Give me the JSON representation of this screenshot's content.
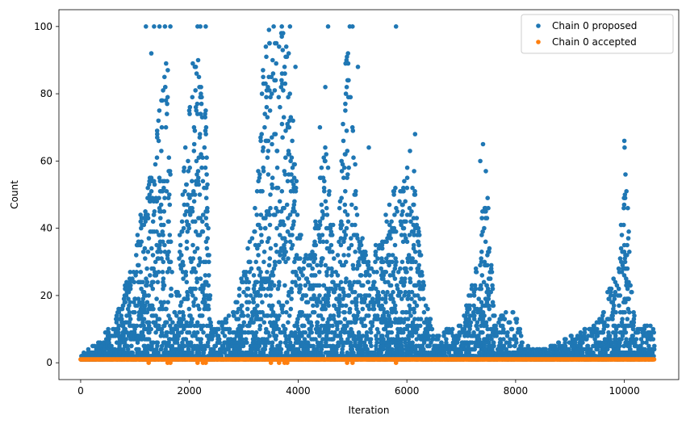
{
  "chart_data": {
    "type": "scatter",
    "title": "",
    "xlabel": "Iteration",
    "ylabel": "Count",
    "xlim": [
      -400,
      11000
    ],
    "ylim": [
      -5,
      105
    ],
    "xticks": [
      0,
      2000,
      4000,
      6000,
      8000,
      10000
    ],
    "xtick_labels": [
      "0",
      "2000",
      "4000",
      "6000",
      "8000",
      "10000"
    ],
    "yticks": [
      0,
      20,
      40,
      60,
      80,
      100
    ],
    "ytick_labels": [
      "0",
      "20",
      "40",
      "60",
      "80",
      "100"
    ],
    "grid": false,
    "legend_position": "upper right",
    "x_range_points": [
      0,
      10550
    ],
    "series": [
      {
        "name": "Chain 0 proposed",
        "color": "#1f77b4",
        "envelope": [
          [
            0,
            2
          ],
          [
            300,
            6
          ],
          [
            600,
            12
          ],
          [
            900,
            28
          ],
          [
            1100,
            45
          ],
          [
            1300,
            62
          ],
          [
            1500,
            80
          ],
          [
            1600,
            100
          ],
          [
            1700,
            10
          ],
          [
            1900,
            60
          ],
          [
            2100,
            100
          ],
          [
            2300,
            75
          ],
          [
            2400,
            10
          ],
          [
            2800,
            15
          ],
          [
            3200,
            45
          ],
          [
            3400,
            100
          ],
          [
            3800,
            100
          ],
          [
            4000,
            45
          ],
          [
            4200,
            30
          ],
          [
            4500,
            70
          ],
          [
            4700,
            30
          ],
          [
            4900,
            100
          ],
          [
            5100,
            45
          ],
          [
            5300,
            30
          ],
          [
            5600,
            45
          ],
          [
            5800,
            55
          ],
          [
            6100,
            65
          ],
          [
            6300,
            25
          ],
          [
            6500,
            8
          ],
          [
            7000,
            12
          ],
          [
            7300,
            30
          ],
          [
            7450,
            60
          ],
          [
            7600,
            15
          ],
          [
            8000,
            15
          ],
          [
            8150,
            5
          ],
          [
            8500,
            4
          ],
          [
            9000,
            8
          ],
          [
            9500,
            12
          ],
          [
            9900,
            30
          ],
          [
            10000,
            66
          ],
          [
            10200,
            10
          ],
          [
            10550,
            12
          ]
        ],
        "outliers": [
          [
            1200,
            100
          ],
          [
            1350,
            100
          ],
          [
            1450,
            100
          ],
          [
            1550,
            100
          ],
          [
            1650,
            100
          ],
          [
            2150,
            100
          ],
          [
            2200,
            100
          ],
          [
            2300,
            100
          ],
          [
            3550,
            100
          ],
          [
            3700,
            100
          ],
          [
            3850,
            100
          ],
          [
            4550,
            100
          ],
          [
            4950,
            100
          ],
          [
            5000,
            100
          ],
          [
            5800,
            100
          ],
          [
            1300,
            92
          ],
          [
            2100,
            88
          ],
          [
            3600,
            95
          ],
          [
            3750,
            88
          ],
          [
            5100,
            88
          ],
          [
            3950,
            88
          ],
          [
            4500,
            82
          ],
          [
            4400,
            70
          ],
          [
            6150,
            68
          ],
          [
            5300,
            64
          ],
          [
            7400,
            65
          ],
          [
            7350,
            60
          ],
          [
            10000,
            66
          ],
          [
            10000,
            35
          ],
          [
            7450,
            43
          ]
        ]
      },
      {
        "name": "Chain 0 accepted",
        "color": "#ff7f0e",
        "value": 1,
        "low_outliers": [
          [
            1250,
            0
          ],
          [
            1600,
            0
          ],
          [
            1650,
            0
          ],
          [
            2150,
            0
          ],
          [
            2250,
            0
          ],
          [
            2300,
            0
          ],
          [
            3500,
            0
          ],
          [
            3650,
            0
          ],
          [
            3750,
            0
          ],
          [
            3800,
            0
          ],
          [
            4900,
            0
          ],
          [
            5000,
            0
          ],
          [
            5800,
            0
          ]
        ]
      }
    ]
  }
}
